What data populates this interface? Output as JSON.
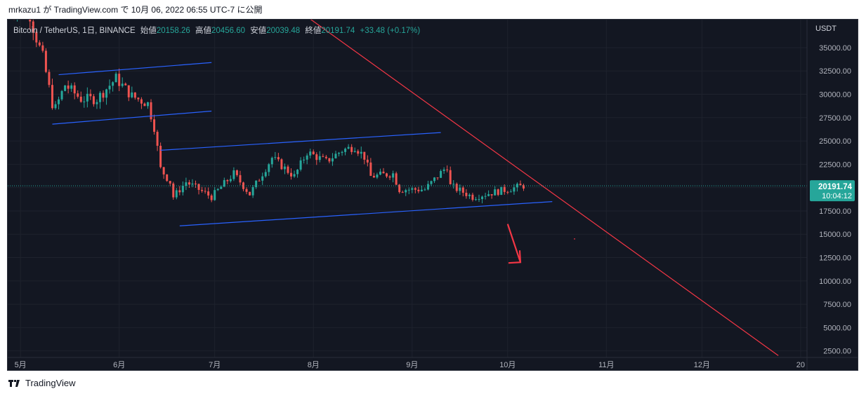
{
  "header": {
    "text": "mrkazu1 が TradingView.com で 10月 06, 2022 06:55 UTC-7 に公開"
  },
  "legend": {
    "symbol": "Bitcoin / TetherUS, 1日, BINANCE",
    "open_label": "始値",
    "open": "20158.26",
    "high_label": "高値",
    "high": "20456.60",
    "low_label": "安値",
    "low": "20039.48",
    "close_label": "終値",
    "close": "20191.74",
    "change": "+33.48 (+0.17%)"
  },
  "footer": {
    "brand": "TradingView",
    "logo_icon": "tradingview-logo-icon"
  },
  "colors": {
    "up": "#26a69a",
    "down": "#ef5350",
    "background": "#131722",
    "trend_line": "#f23645",
    "channel": "#2962ff"
  },
  "chart_data": {
    "type": "candlestick",
    "symbol": "BTCUSDT",
    "interval": "1日",
    "y_axis": {
      "currency": "USDT",
      "ticks": [
        2500,
        5000,
        7500,
        10000,
        12500,
        15000,
        17500,
        20000,
        22500,
        25000,
        27500,
        30000,
        32500,
        35000
      ],
      "tick_labels": [
        "2500.00",
        "5000.00",
        "7500.00",
        "10000.00",
        "12500.00",
        "15000.00",
        "17500.00",
        "20000.00",
        "22500.00",
        "25000.00",
        "27500.00",
        "30000.00",
        "32500.00",
        "35000.00"
      ],
      "range": [
        1800,
        38000
      ]
    },
    "x_axis": {
      "labels": [
        "5月",
        "6月",
        "7月",
        "8月",
        "9月",
        "10月",
        "11月",
        "12月",
        "20"
      ],
      "range": [
        "2022-04-27",
        "2023-01-03"
      ]
    },
    "price_label": {
      "value": "20191.74",
      "countdown": "10:04:12"
    },
    "segments": [
      [
        "2022-04-27",
        39500
      ],
      [
        "2022-05-04",
        38500
      ],
      [
        "2022-05-06",
        36000
      ],
      [
        "2022-05-08",
        34000
      ],
      [
        "2022-05-11",
        29000
      ],
      [
        "2022-05-12",
        28500
      ],
      [
        "2022-05-15",
        31000
      ],
      [
        "2022-05-20",
        29500
      ],
      [
        "2022-05-25",
        29500
      ],
      [
        "2022-05-31",
        31700
      ],
      [
        "2022-06-05",
        29800
      ],
      [
        "2022-06-10",
        29000
      ],
      [
        "2022-06-12",
        26500
      ],
      [
        "2022-06-14",
        22000
      ],
      [
        "2022-06-17",
        20600
      ],
      [
        "2022-06-18",
        19000
      ],
      [
        "2022-06-22",
        20600
      ],
      [
        "2022-06-30",
        19000
      ],
      [
        "2022-07-07",
        21500
      ],
      [
        "2022-07-12",
        19300
      ],
      [
        "2022-07-19",
        23200
      ],
      [
        "2022-07-26",
        21200
      ],
      [
        "2022-07-30",
        23800
      ],
      [
        "2022-08-05",
        22800
      ],
      [
        "2022-08-10",
        24000
      ],
      [
        "2022-08-14",
        24400
      ],
      [
        "2022-08-17",
        23300
      ],
      [
        "2022-08-19",
        21200
      ],
      [
        "2022-08-26",
        21500
      ],
      [
        "2022-08-28",
        19800
      ],
      [
        "2022-09-05",
        19800
      ],
      [
        "2022-09-12",
        22300
      ],
      [
        "2022-09-13",
        20200
      ],
      [
        "2022-09-20",
        19000
      ],
      [
        "2022-10-06",
        20200
      ]
    ],
    "drawings": {
      "trend_line": [
        [
          "2022-07-28",
          38800
        ],
        [
          "2022-12-25",
          2000
        ]
      ],
      "channel_1": [
        [
          "2022-05-13",
          32100
        ],
        [
          "2022-06-30",
          33400
        ],
        [
          "2022-05-11",
          26800
        ],
        [
          "2022-06-30",
          28200
        ]
      ],
      "channel_2": [
        [
          "2022-06-14",
          24000
        ],
        [
          "2022-09-10",
          25900
        ],
        [
          "2022-06-20",
          15900
        ],
        [
          "2022-10-15",
          18500
        ]
      ],
      "arrow": [
        [
          "2022-10-01",
          16100
        ],
        [
          "2022-10-05",
          12000
        ]
      ],
      "dot": [
        "2022-10-22",
        14500
      ]
    }
  }
}
